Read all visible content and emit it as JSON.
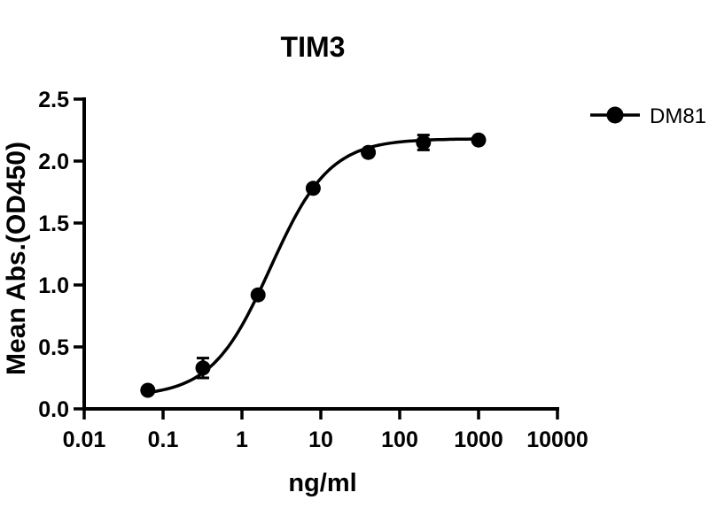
{
  "title": "TIM3",
  "legend": [
    {
      "label": "DM81",
      "marker": "filled-circle-on-line-icon",
      "color": "#000000"
    }
  ],
  "chart_data": {
    "type": "scatter",
    "subtype": "dose-response-curve",
    "title": "TIM3",
    "xlabel": "ng/ml",
    "ylabel": "Mean Abs.(OD450)",
    "x_scale": "log10",
    "xlim": [
      0.01,
      10000
    ],
    "ylim": [
      0.0,
      2.5
    ],
    "x_ticks": [
      "0.01",
      "0.1",
      "1",
      "10",
      "100",
      "1000",
      "10000"
    ],
    "y_ticks": [
      "0.0",
      "0.5",
      "1.0",
      "1.5",
      "2.0",
      "2.5"
    ],
    "grid": false,
    "legend_position": "right",
    "series": [
      {
        "name": "DM81",
        "color": "#000000",
        "x": [
          0.064,
          0.32,
          1.6,
          8,
          40,
          200,
          1000
        ],
        "y": [
          0.15,
          0.33,
          0.92,
          1.78,
          2.07,
          2.15,
          2.17
        ],
        "y_err": [
          0,
          0.08,
          0,
          0,
          0,
          0.06,
          0
        ],
        "curve_fit": {
          "model": "4PL",
          "bottom": 0.1,
          "top": 2.18,
          "ec50": 2.3,
          "hill": 1.16
        }
      }
    ],
    "colors": {
      "line": "#000000",
      "marker": "#000000",
      "background": "#ffffff"
    }
  }
}
